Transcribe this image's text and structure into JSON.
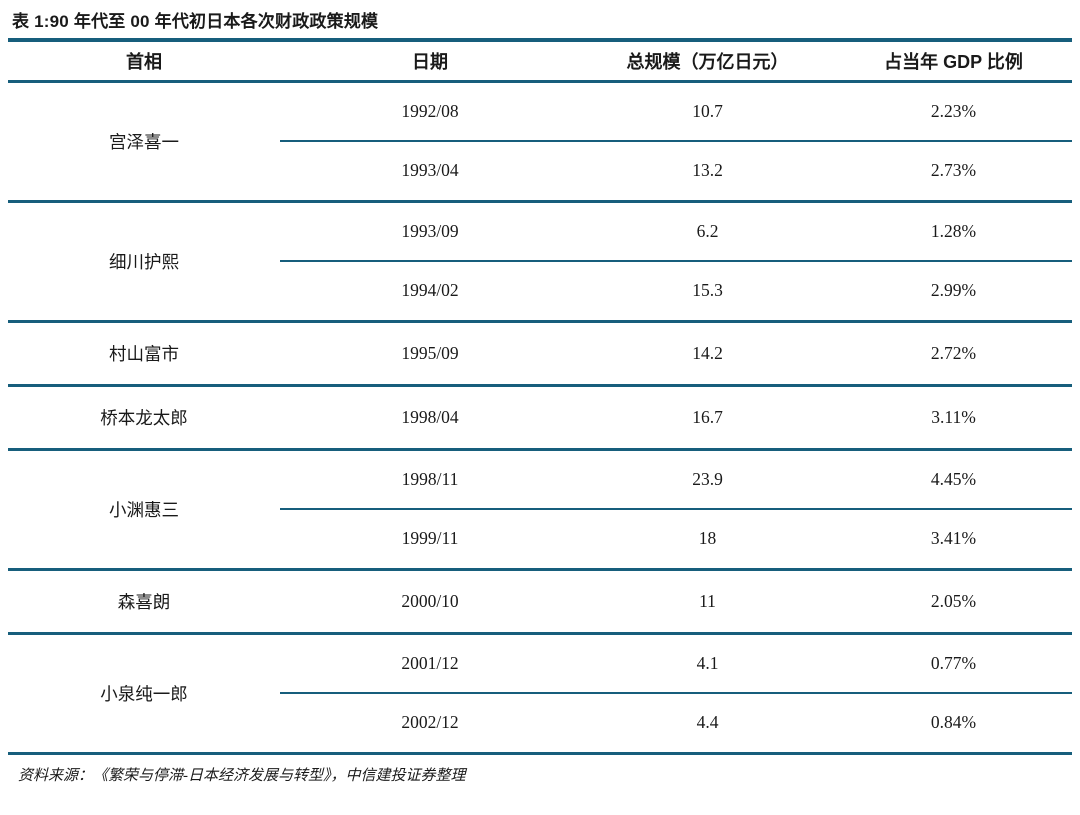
{
  "title": "表 1:90 年代至 00 年代初日本各次财政政策规模",
  "colors": {
    "line": "#175E7C",
    "background": "#FFFFFF",
    "text": "#1A1A1A"
  },
  "table": {
    "headers": [
      "首相",
      "日期",
      "总规模（万亿日元）",
      "占当年 GDP 比例"
    ],
    "groups": [
      {
        "pm": "宫泽喜一",
        "entries": [
          {
            "date": "1992/08",
            "scale": "10.7",
            "gdp": "2.23%"
          },
          {
            "date": "1993/04",
            "scale": "13.2",
            "gdp": "2.73%"
          }
        ]
      },
      {
        "pm": "细川护熙",
        "entries": [
          {
            "date": "1993/09",
            "scale": "6.2",
            "gdp": "1.28%"
          },
          {
            "date": "1994/02",
            "scale": "15.3",
            "gdp": "2.99%"
          }
        ]
      },
      {
        "pm": "村山富市",
        "entries": [
          {
            "date": "1995/09",
            "scale": "14.2",
            "gdp": "2.72%"
          }
        ]
      },
      {
        "pm": "桥本龙太郎",
        "entries": [
          {
            "date": "1998/04",
            "scale": "16.7",
            "gdp": "3.11%"
          }
        ]
      },
      {
        "pm": "小渊惠三",
        "entries": [
          {
            "date": "1998/11",
            "scale": "23.9",
            "gdp": "4.45%"
          },
          {
            "date": "1999/11",
            "scale": "18",
            "gdp": "3.41%"
          }
        ]
      },
      {
        "pm": "森喜朗",
        "entries": [
          {
            "date": "2000/10",
            "scale": "11",
            "gdp": "2.05%"
          }
        ]
      },
      {
        "pm": "小泉纯一郎",
        "entries": [
          {
            "date": "2001/12",
            "scale": "4.1",
            "gdp": "0.77%"
          },
          {
            "date": "2002/12",
            "scale": "4.4",
            "gdp": "0.84%"
          }
        ]
      }
    ]
  },
  "footer": {
    "source": "资料来源：《繁荣与停滞-日本经济发展与转型》，中信建投证券整理"
  }
}
